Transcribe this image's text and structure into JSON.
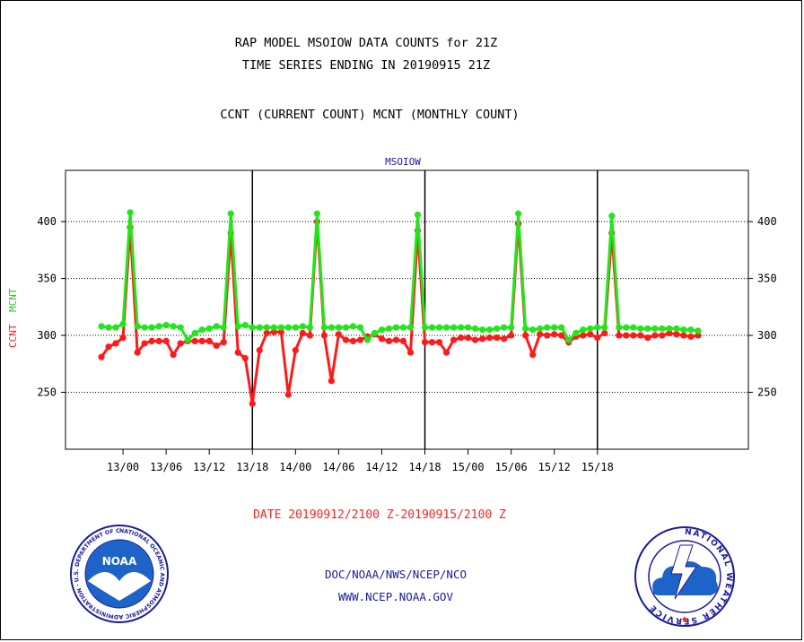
{
  "header": {
    "title_line1": "RAP MODEL MSOIOW DATA COUNTS for 21Z",
    "title_line2": "TIME SERIES ENDING IN 20190915 21Z",
    "subtitle": "CCNT (CURRENT COUNT) MCNT (MONTHLY COUNT)"
  },
  "footer": {
    "date_range": "DATE 20190912/2100 Z-20190915/2100 Z",
    "org_line": "DOC/NOAA/NWS/NCEP/NCO",
    "url_line": "WWW.NCEP.NOAA.GOV"
  },
  "logos": {
    "noaa_text": "NOAA",
    "noaa_ring_text": "NATIONAL OCEANIC AND ATMOSPHERIC ADMINISTRATION · U.S. DEPARTMENT OF COMMERCE ·",
    "nws_ring_text": "NATIONAL WEATHER SERVICE"
  },
  "colors": {
    "ccnt": "#ff1a1a",
    "mcnt": "#22e61a",
    "title_blue": "#1a1aa0",
    "date_red": "#ff2222",
    "grid": "#000000"
  },
  "chart_data": {
    "type": "line",
    "title": "MSOIOW",
    "ylabel_series": [
      "CCNT",
      "MCNT"
    ],
    "ylim": [
      200,
      445
    ],
    "yticks": [
      250,
      300,
      350,
      400
    ],
    "x_index_range": [
      -5,
      90
    ],
    "xtick_labels": [
      "13/00",
      "13/06",
      "13/12",
      "13/18",
      "14/00",
      "14/06",
      "14/12",
      "14/18",
      "15/00",
      "15/06",
      "15/12",
      "15/18"
    ],
    "xtick_positions": [
      3,
      9,
      15,
      21,
      27,
      33,
      39,
      45,
      51,
      57,
      63,
      69
    ],
    "day_boundaries": [
      21,
      45,
      69
    ],
    "grid": true,
    "series": [
      {
        "name": "CCNT",
        "color": "#ff1a1a",
        "values": [
          281,
          290,
          293,
          298,
          395,
          285,
          293,
          295,
          295,
          295,
          283,
          293,
          295,
          295,
          295,
          295,
          291,
          294,
          390,
          285,
          280,
          240,
          287,
          302,
          303,
          303,
          248,
          287,
          302,
          300,
          400,
          300,
          260,
          301,
          296,
          295,
          296,
          299,
          301,
          297,
          295,
          296,
          295,
          285,
          392,
          294,
          294,
          294,
          285,
          296,
          298,
          298,
          296,
          297,
          298,
          298,
          297,
          300,
          398,
          300,
          283,
          301,
          300,
          301,
          300,
          294,
          299,
          300,
          301,
          298,
          302,
          390,
          300,
          300,
          300,
          300,
          298,
          300,
          300,
          302,
          301,
          300,
          299,
          300
        ]
      },
      {
        "name": "MCNT",
        "color": "#22e61a",
        "values": [
          308,
          307,
          307,
          310,
          408,
          308,
          307,
          307,
          308,
          309,
          308,
          307,
          296,
          302,
          305,
          306,
          308,
          307,
          407,
          308,
          309,
          307,
          307,
          307,
          307,
          307,
          307,
          307,
          308,
          307,
          407,
          307,
          307,
          307,
          307,
          308,
          307,
          296,
          302,
          305,
          306,
          307,
          307,
          307,
          406,
          307,
          307,
          307,
          307,
          307,
          307,
          307,
          306,
          305,
          305,
          306,
          307,
          307,
          407,
          306,
          305,
          306,
          307,
          307,
          307,
          296,
          302,
          305,
          306,
          307,
          307,
          405,
          307,
          307,
          307,
          306,
          306,
          306,
          306,
          306,
          306,
          305,
          305,
          304
        ]
      }
    ]
  }
}
